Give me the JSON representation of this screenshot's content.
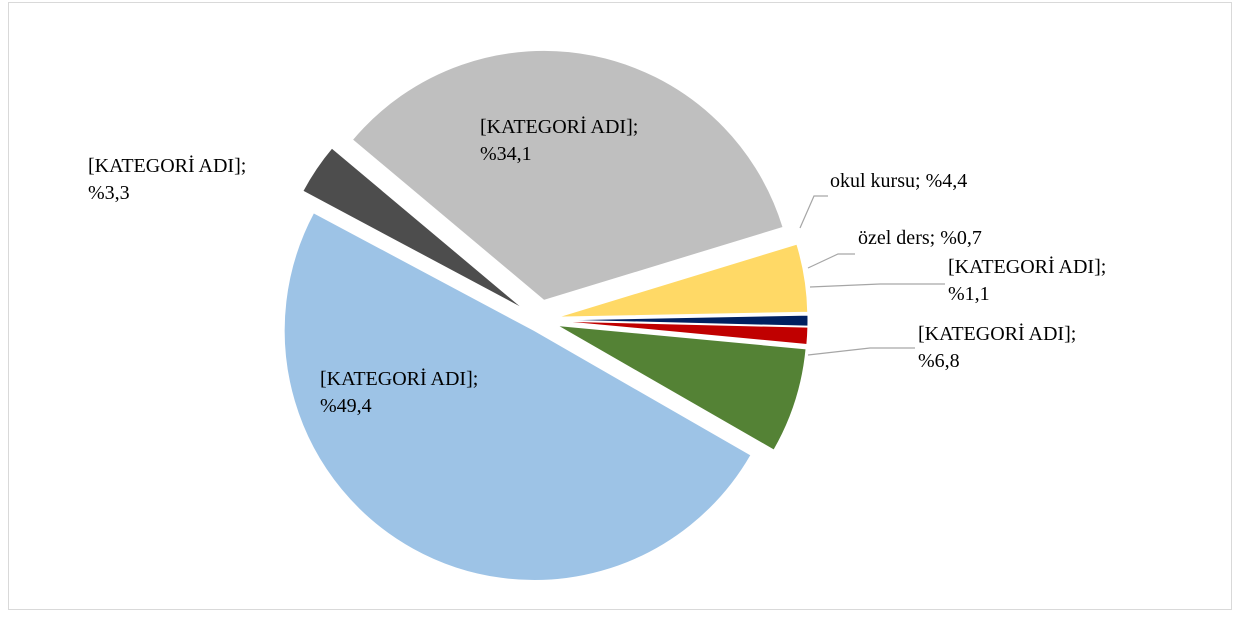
{
  "chart_data": {
    "type": "pie",
    "categories": [
      "[KATEGORİ ADI]",
      "okul kursu",
      "özel ders",
      "[KATEGORİ ADI]",
      "[KATEGORİ ADI]",
      "[KATEGORİ ADI]",
      "[KATEGORİ ADI]"
    ],
    "values": [
      34.1,
      4.4,
      0.7,
      1.1,
      6.8,
      49.4,
      3.3
    ],
    "value_labels": [
      "%34,1",
      "%4,4",
      "%0,7",
      "%1,1",
      "%6,8",
      "%49,4",
      "%3,3"
    ],
    "label_separator": "; ",
    "colors": [
      "#bfbfbf",
      "#ffd966",
      "#002060",
      "#c00000",
      "#548235",
      "#9dc3e6",
      "#4d4d4d"
    ]
  }
}
